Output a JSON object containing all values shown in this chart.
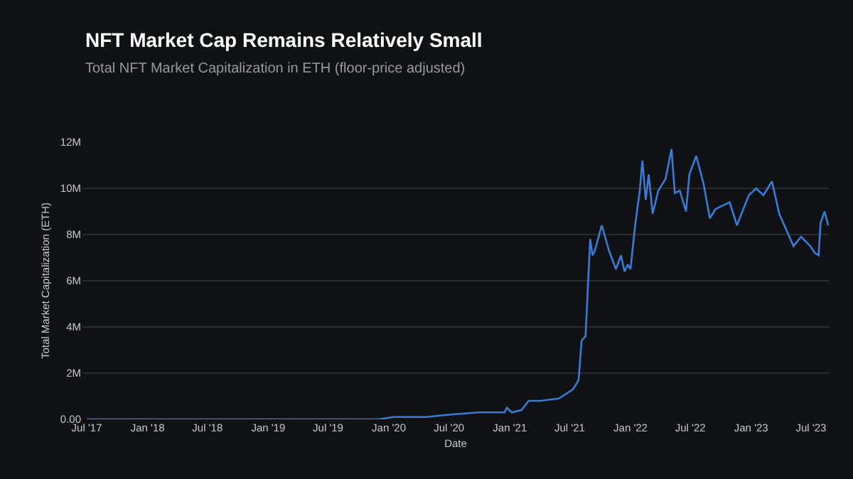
{
  "chart_data": {
    "type": "line",
    "title": "NFT Market Cap Remains Relatively Small",
    "subtitle": "Total NFT Market Capitalization in ETH (floor-price adjusted)",
    "xlabel": "Date",
    "ylabel": "Total Market Capitalization (ETH)",
    "x": [
      "2017-07-01",
      "2018-01-01",
      "2018-07-01",
      "2019-01-01",
      "2019-07-01",
      "2019-12-01",
      "2020-01-15",
      "2020-04-22",
      "2020-07-01",
      "2020-09-28",
      "2020-12-16",
      "2020-12-23",
      "2021-01-07",
      "2021-02-05",
      "2021-02-27",
      "2021-04-02",
      "2021-05-29",
      "2021-07-11",
      "2021-07-28",
      "2021-08-06",
      "2021-08-18",
      "2021-08-24",
      "2021-09-01",
      "2021-09-08",
      "2021-09-15",
      "2021-10-06",
      "2021-10-28",
      "2021-11-18",
      "2021-12-03",
      "2021-12-14",
      "2021-12-24",
      "2022-01-01",
      "2022-01-15",
      "2022-01-29",
      "2022-02-06",
      "2022-02-16",
      "2022-02-25",
      "2022-03-09",
      "2022-03-26",
      "2022-04-17",
      "2022-05-05",
      "2022-05-15",
      "2022-05-30",
      "2022-06-18",
      "2022-06-28",
      "2022-07-19",
      "2022-08-10",
      "2022-08-29",
      "2022-09-15",
      "2022-10-28",
      "2022-11-19",
      "2022-12-25",
      "2023-01-16",
      "2023-02-07",
      "2023-03-05",
      "2023-03-27",
      "2023-05-09",
      "2023-06-01",
      "2023-06-29",
      "2023-07-13",
      "2023-07-24",
      "2023-07-30",
      "2023-08-11",
      "2023-08-22"
    ],
    "series": [
      {
        "color": "#3a7bd5",
        "values": [
          0,
          0,
          0,
          0,
          0,
          0,
          100000,
          100000,
          200000,
          300000,
          300000,
          500000,
          300000,
          400000,
          800000,
          800000,
          900000,
          1300000,
          1700000,
          3400000,
          3600000,
          5400000,
          7800000,
          7100000,
          7300000,
          8400000,
          7300000,
          6500000,
          7100000,
          6400000,
          6700000,
          6500000,
          8400000,
          9900000,
          11200000,
          9500000,
          10600000,
          8900000,
          9900000,
          10400000,
          11700000,
          9800000,
          9900000,
          9000000,
          10600000,
          11400000,
          10200000,
          8700000,
          9100000,
          9400000,
          8400000,
          9700000,
          10000000,
          9700000,
          10300000,
          8900000,
          7500000,
          7900000,
          7500000,
          7200000,
          7100000,
          8500000,
          9000000,
          8400000
        ]
      }
    ],
    "xlim": [
      "2017-06-18",
      "2023-08-24"
    ],
    "xticks": [
      {
        "value": "2017-07-01",
        "label": "Jul '17"
      },
      {
        "value": "2018-01-01",
        "label": "Jan '18"
      },
      {
        "value": "2018-07-01",
        "label": "Jul '18"
      },
      {
        "value": "2019-01-01",
        "label": "Jan '19"
      },
      {
        "value": "2019-07-01",
        "label": "Jul '19"
      },
      {
        "value": "2020-01-01",
        "label": "Jan '20"
      },
      {
        "value": "2020-07-01",
        "label": "Jul '20"
      },
      {
        "value": "2021-01-01",
        "label": "Jan '21"
      },
      {
        "value": "2021-07-01",
        "label": "Jul '21"
      },
      {
        "value": "2022-01-01",
        "label": "Jan '22"
      },
      {
        "value": "2022-07-01",
        "label": "Jul '22"
      },
      {
        "value": "2023-01-01",
        "label": "Jan '23"
      },
      {
        "value": "2023-07-01",
        "label": "Jul '23"
      }
    ],
    "ylim": [
      0,
      12000000
    ],
    "yticks": [
      {
        "value": 0,
        "label": "0.00"
      },
      {
        "value": 2000000,
        "label": "2M"
      },
      {
        "value": 4000000,
        "label": "4M"
      },
      {
        "value": 6000000,
        "label": "6M"
      },
      {
        "value": 8000000,
        "label": "8M"
      },
      {
        "value": 10000000,
        "label": "10M"
      },
      {
        "value": 12000000,
        "label": "12M"
      }
    ],
    "grid": "y",
    "marker": "none",
    "line_style": "solid"
  }
}
